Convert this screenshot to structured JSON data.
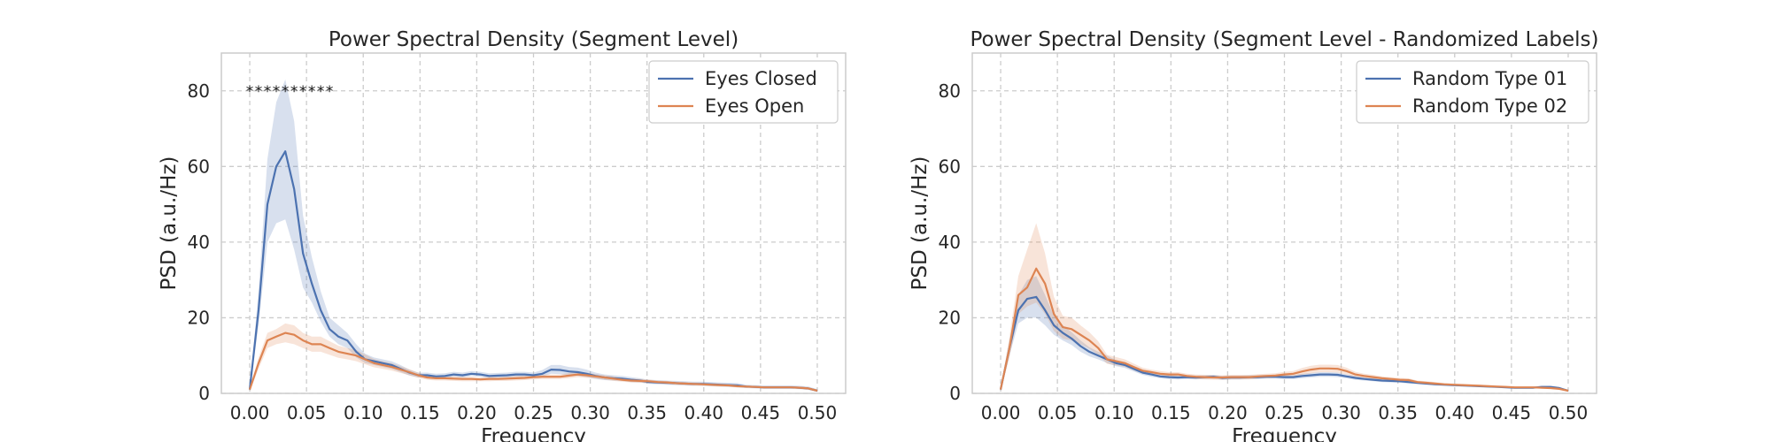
{
  "colors": {
    "series_1": "#4c72b0",
    "series_2": "#dd8452",
    "grid": "#cccccc",
    "text": "#262626",
    "star": "#111111"
  },
  "chart_data": [
    {
      "type": "line",
      "title": "Power Spectral Density (Segment Level)",
      "xlabel": "Frequency",
      "ylabel": "PSD (a.u./Hz)",
      "xlim": [
        -0.025,
        0.525
      ],
      "ylim": [
        0,
        90
      ],
      "xticks": [
        "0.00",
        "0.05",
        "0.10",
        "0.15",
        "0.20",
        "0.25",
        "0.30",
        "0.35",
        "0.40",
        "0.45",
        "0.50"
      ],
      "yticks": [
        "0",
        "20",
        "40",
        "60",
        "80"
      ],
      "grid": true,
      "legend_position": "top-right",
      "significance_marker": "*",
      "significance_y": 80,
      "significance_x": [
        0.0,
        0.0078,
        0.0156,
        0.0234,
        0.0313,
        0.0391,
        0.0469,
        0.0547,
        0.0625,
        0.0703
      ],
      "x": [
        0.0,
        0.0078,
        0.0156,
        0.0234,
        0.0313,
        0.0391,
        0.0469,
        0.0547,
        0.0625,
        0.0703,
        0.0781,
        0.0859,
        0.0938,
        0.1016,
        0.1094,
        0.1172,
        0.125,
        0.1328,
        0.1406,
        0.1484,
        0.1563,
        0.1641,
        0.1719,
        0.1797,
        0.1875,
        0.1953,
        0.2031,
        0.2109,
        0.2188,
        0.2266,
        0.2344,
        0.2422,
        0.25,
        0.2578,
        0.2656,
        0.2734,
        0.2813,
        0.2891,
        0.2969,
        0.3047,
        0.3125,
        0.3203,
        0.3281,
        0.3359,
        0.3438,
        0.3516,
        0.3594,
        0.3672,
        0.375,
        0.3828,
        0.3906,
        0.3984,
        0.4063,
        0.4141,
        0.4219,
        0.4297,
        0.4375,
        0.4453,
        0.4531,
        0.4609,
        0.4688,
        0.4766,
        0.4844,
        0.4922,
        0.5
      ],
      "series": [
        {
          "name": "Eyes Closed",
          "color": "#4c72b0",
          "values": [
            1,
            22,
            50,
            60,
            64,
            54,
            37,
            29,
            22,
            17,
            15,
            14,
            11,
            9,
            8.5,
            8,
            7.5,
            6.5,
            5.5,
            4.8,
            4.8,
            4.5,
            4.6,
            5,
            4.8,
            5.2,
            5,
            4.6,
            4.7,
            4.8,
            5,
            5,
            4.8,
            5.2,
            6.3,
            6.2,
            5.8,
            5.6,
            5.2,
            4.6,
            4.2,
            4,
            3.9,
            3.6,
            3.4,
            3,
            2.9,
            2.8,
            2.7,
            2.6,
            2.5,
            2.5,
            2.4,
            2.3,
            2.2,
            2.1,
            1.8,
            1.7,
            1.6,
            1.6,
            1.6,
            1.6,
            1.5,
            1.3,
            0.7
          ],
          "lower": [
            0.5,
            18,
            40,
            45,
            46,
            38,
            28,
            24,
            19,
            15,
            13,
            12,
            9.5,
            8,
            7.5,
            7,
            6.5,
            5.6,
            4.7,
            4.2,
            4.2,
            3.9,
            4,
            4.4,
            4.2,
            4.6,
            4.4,
            4,
            4.1,
            4.2,
            4.4,
            4.4,
            4.2,
            4.5,
            5.2,
            5.1,
            4.8,
            4.6,
            4.3,
            3.8,
            3.5,
            3.4,
            3.3,
            3,
            2.9,
            2.5,
            2.4,
            2.3,
            2.2,
            2.1,
            2,
            2,
            1.9,
            1.8,
            1.7,
            1.6,
            1.4,
            1.3,
            1.2,
            1.2,
            1.2,
            1.2,
            1.1,
            0.9,
            0.4
          ],
          "upper": [
            1.5,
            27,
            62,
            77,
            83,
            72,
            47,
            36,
            27,
            20,
            18,
            16,
            13,
            10.5,
            9.5,
            9,
            8.5,
            7.5,
            6.3,
            5.5,
            5.5,
            5.2,
            5.3,
            5.7,
            5.5,
            5.9,
            5.7,
            5.3,
            5.4,
            5.5,
            5.7,
            5.7,
            5.5,
            6.2,
            7.5,
            7.5,
            7,
            6.8,
            6.3,
            5.5,
            5,
            4.8,
            4.6,
            4.3,
            4,
            3.6,
            3.5,
            3.4,
            3.3,
            3.2,
            3.1,
            3.1,
            3,
            2.9,
            2.8,
            2.7,
            2.3,
            2.2,
            2.1,
            2.1,
            2.1,
            2.1,
            2,
            1.8,
            1.1
          ]
        },
        {
          "name": "Eyes Open",
          "color": "#dd8452",
          "values": [
            1,
            8,
            14,
            15,
            16,
            15.5,
            14,
            13,
            13,
            12,
            11,
            10.5,
            10,
            9,
            8,
            7.5,
            7,
            6.3,
            5.6,
            4.8,
            4.2,
            4,
            4,
            3.9,
            3.8,
            3.8,
            3.7,
            3.8,
            3.8,
            3.9,
            4,
            4.1,
            4.3,
            4.4,
            4.4,
            4.4,
            4.7,
            5,
            4.8,
            4.5,
            4.2,
            3.9,
            3.6,
            3.4,
            3.3,
            3.2,
            3,
            2.9,
            2.7,
            2.6,
            2.5,
            2.4,
            2.3,
            2.2,
            2.1,
            1.9,
            1.8,
            1.7,
            1.6,
            1.6,
            1.6,
            1.6,
            1.5,
            1.3,
            0.7
          ],
          "lower": [
            0.5,
            6.5,
            12,
            13,
            13.5,
            13,
            12,
            11,
            11,
            10.2,
            9.4,
            9,
            8.5,
            7.7,
            6.9,
            6.5,
            6,
            5.4,
            4.8,
            4.1,
            3.6,
            3.4,
            3.4,
            3.3,
            3.2,
            3.2,
            3.2,
            3.2,
            3.3,
            3.3,
            3.4,
            3.5,
            3.7,
            3.8,
            3.8,
            3.8,
            4,
            4.3,
            4.1,
            3.9,
            3.6,
            3.3,
            3.1,
            2.9,
            2.8,
            2.7,
            2.6,
            2.5,
            2.3,
            2.2,
            2.1,
            2,
            1.9,
            1.8,
            1.8,
            1.6,
            1.5,
            1.4,
            1.3,
            1.3,
            1.3,
            1.3,
            1.2,
            1,
            0.4
          ],
          "upper": [
            1.5,
            9.5,
            16,
            17,
            18.5,
            18,
            16,
            15,
            15,
            13.8,
            12.6,
            12,
            11.5,
            10.3,
            9.1,
            8.5,
            8,
            7.2,
            6.4,
            5.5,
            4.8,
            4.6,
            4.6,
            4.5,
            4.4,
            4.4,
            4.2,
            4.4,
            4.3,
            4.5,
            4.6,
            4.7,
            4.9,
            5,
            5,
            5,
            5.4,
            5.7,
            5.5,
            5.1,
            4.8,
            4.5,
            4.1,
            3.9,
            3.8,
            3.7,
            3.4,
            3.3,
            3.1,
            3,
            2.9,
            2.8,
            2.7,
            2.6,
            2.4,
            2.2,
            2.1,
            2,
            1.9,
            1.9,
            1.9,
            1.9,
            1.8,
            1.6,
            1
          ]
        }
      ]
    },
    {
      "type": "line",
      "title": "Power Spectral Density (Segment Level - Randomized Labels)",
      "xlabel": "Frequency",
      "ylabel": "PSD (a.u./Hz)",
      "xlim": [
        -0.025,
        0.525
      ],
      "ylim": [
        0,
        90
      ],
      "xticks": [
        "0.00",
        "0.05",
        "0.10",
        "0.15",
        "0.20",
        "0.25",
        "0.30",
        "0.35",
        "0.40",
        "0.45",
        "0.50"
      ],
      "yticks": [
        "0",
        "20",
        "40",
        "60",
        "80"
      ],
      "grid": true,
      "legend_position": "top-right",
      "x": [
        0.0,
        0.0078,
        0.0156,
        0.0234,
        0.0313,
        0.0391,
        0.0469,
        0.0547,
        0.0625,
        0.0703,
        0.0781,
        0.0859,
        0.0938,
        0.1016,
        0.1094,
        0.1172,
        0.125,
        0.1328,
        0.1406,
        0.1484,
        0.1563,
        0.1641,
        0.1719,
        0.1797,
        0.1875,
        0.1953,
        0.2031,
        0.2109,
        0.2188,
        0.2266,
        0.2344,
        0.2422,
        0.25,
        0.2578,
        0.2656,
        0.2734,
        0.2813,
        0.2891,
        0.2969,
        0.3047,
        0.3125,
        0.3203,
        0.3281,
        0.3359,
        0.3438,
        0.3516,
        0.3594,
        0.3672,
        0.375,
        0.3828,
        0.3906,
        0.3984,
        0.4063,
        0.4141,
        0.4219,
        0.4297,
        0.4375,
        0.4453,
        0.4531,
        0.4609,
        0.4688,
        0.4766,
        0.4844,
        0.4922,
        0.5
      ],
      "series": [
        {
          "name": "Random Type 01",
          "color": "#4c72b0",
          "values": [
            1,
            12,
            22,
            25,
            25.5,
            22,
            18,
            16,
            14.5,
            12.5,
            11,
            10,
            9,
            8,
            7.5,
            6.5,
            5.5,
            5,
            4.5,
            4.3,
            4.2,
            4.3,
            4.2,
            4.3,
            4.4,
            4.1,
            4.2,
            4.2,
            4.3,
            4.3,
            4.4,
            4.4,
            4.3,
            4.3,
            4.6,
            4.8,
            5,
            5,
            4.9,
            4.5,
            4.1,
            3.8,
            3.6,
            3.4,
            3.3,
            3.2,
            3,
            2.8,
            2.6,
            2.4,
            2.3,
            2.2,
            2.1,
            2,
            1.9,
            1.8,
            1.7,
            1.6,
            1.5,
            1.5,
            1.5,
            1.7,
            1.7,
            1.4,
            0.7
          ],
          "lower": [
            0.5,
            10,
            18.5,
            20,
            20,
            18,
            15.5,
            14,
            12.8,
            11,
            9.8,
            9,
            8,
            7.2,
            6.7,
            5.8,
            4.9,
            4.4,
            4,
            3.8,
            3.7,
            3.8,
            3.7,
            3.8,
            3.9,
            3.6,
            3.7,
            3.7,
            3.8,
            3.8,
            3.9,
            3.9,
            3.8,
            3.8,
            4,
            4.2,
            4.4,
            4.4,
            4.3,
            4,
            3.6,
            3.4,
            3.2,
            3,
            2.9,
            2.8,
            2.6,
            2.4,
            2.3,
            2.1,
            2,
            1.9,
            1.8,
            1.7,
            1.7,
            1.6,
            1.5,
            1.4,
            1.3,
            1.3,
            1.3,
            1.4,
            1.4,
            1.1,
            0.5
          ],
          "upper": [
            1.5,
            14,
            26,
            30,
            31,
            26,
            20.5,
            18,
            16.2,
            14,
            12.2,
            11,
            10,
            8.8,
            8.3,
            7.2,
            6.1,
            5.6,
            5,
            4.8,
            4.7,
            4.8,
            4.7,
            4.8,
            4.9,
            4.6,
            4.7,
            4.7,
            4.8,
            4.8,
            4.9,
            4.9,
            4.8,
            4.8,
            5.2,
            5.4,
            5.6,
            5.6,
            5.5,
            5,
            4.6,
            4.2,
            4,
            3.8,
            3.7,
            3.6,
            3.4,
            3.2,
            2.9,
            2.7,
            2.6,
            2.5,
            2.4,
            2.3,
            2.1,
            2,
            1.9,
            1.8,
            1.7,
            1.7,
            1.7,
            2,
            2,
            1.7,
            0.9
          ]
        },
        {
          "name": "Random Type 02",
          "color": "#dd8452",
          "values": [
            1,
            12,
            26,
            28,
            33,
            29,
            21,
            17.5,
            17,
            15.5,
            14,
            12,
            9,
            8.5,
            8,
            7,
            6,
            5.6,
            5.2,
            5,
            5,
            4.6,
            4.4,
            4.3,
            4.2,
            4.2,
            4.3,
            4.3,
            4.3,
            4.5,
            4.6,
            4.7,
            5,
            5.2,
            5.8,
            6.3,
            6.6,
            6.6,
            6.5,
            5.9,
            5,
            4.6,
            4.3,
            4,
            3.8,
            3.6,
            3.5,
            3,
            2.8,
            2.6,
            2.4,
            2.3,
            2.2,
            2.1,
            2,
            1.9,
            1.8,
            1.7,
            1.6,
            1.6,
            1.6,
            1.5,
            1.4,
            1.2,
            0.7
          ],
          "lower": [
            0.5,
            9.5,
            21,
            23,
            24,
            21,
            16.5,
            14.5,
            14,
            13,
            11.8,
            10.2,
            7.8,
            7.4,
            7,
            6.1,
            5.2,
            4.9,
            4.5,
            4.4,
            4.4,
            4,
            3.8,
            3.7,
            3.6,
            3.6,
            3.7,
            3.7,
            3.7,
            3.9,
            4,
            4.1,
            4.3,
            4.5,
            4.9,
            5.3,
            5.6,
            5.6,
            5.5,
            5,
            4.3,
            4,
            3.7,
            3.5,
            3.3,
            3.1,
            3,
            2.6,
            2.4,
            2.2,
            2.1,
            2,
            1.9,
            1.8,
            1.7,
            1.6,
            1.5,
            1.4,
            1.4,
            1.4,
            1.4,
            1.3,
            1.2,
            1,
            0.4
          ],
          "upper": [
            1.5,
            15,
            31,
            38,
            45,
            37,
            25.5,
            20.5,
            20,
            18,
            16.2,
            13.8,
            10.2,
            9.6,
            9,
            7.9,
            6.8,
            6.3,
            5.9,
            5.6,
            5.6,
            5.2,
            5,
            4.9,
            4.8,
            4.8,
            4.9,
            4.9,
            4.9,
            5.1,
            5.2,
            5.3,
            5.7,
            5.9,
            6.7,
            7.3,
            7.6,
            7.6,
            7.5,
            6.8,
            5.7,
            5.2,
            4.9,
            4.5,
            4.3,
            4.1,
            4,
            3.4,
            3.2,
            3,
            2.7,
            2.6,
            2.5,
            2.4,
            2.3,
            2.2,
            2.1,
            2,
            1.8,
            1.8,
            1.8,
            1.7,
            1.6,
            1.4,
            1
          ]
        }
      ]
    }
  ]
}
